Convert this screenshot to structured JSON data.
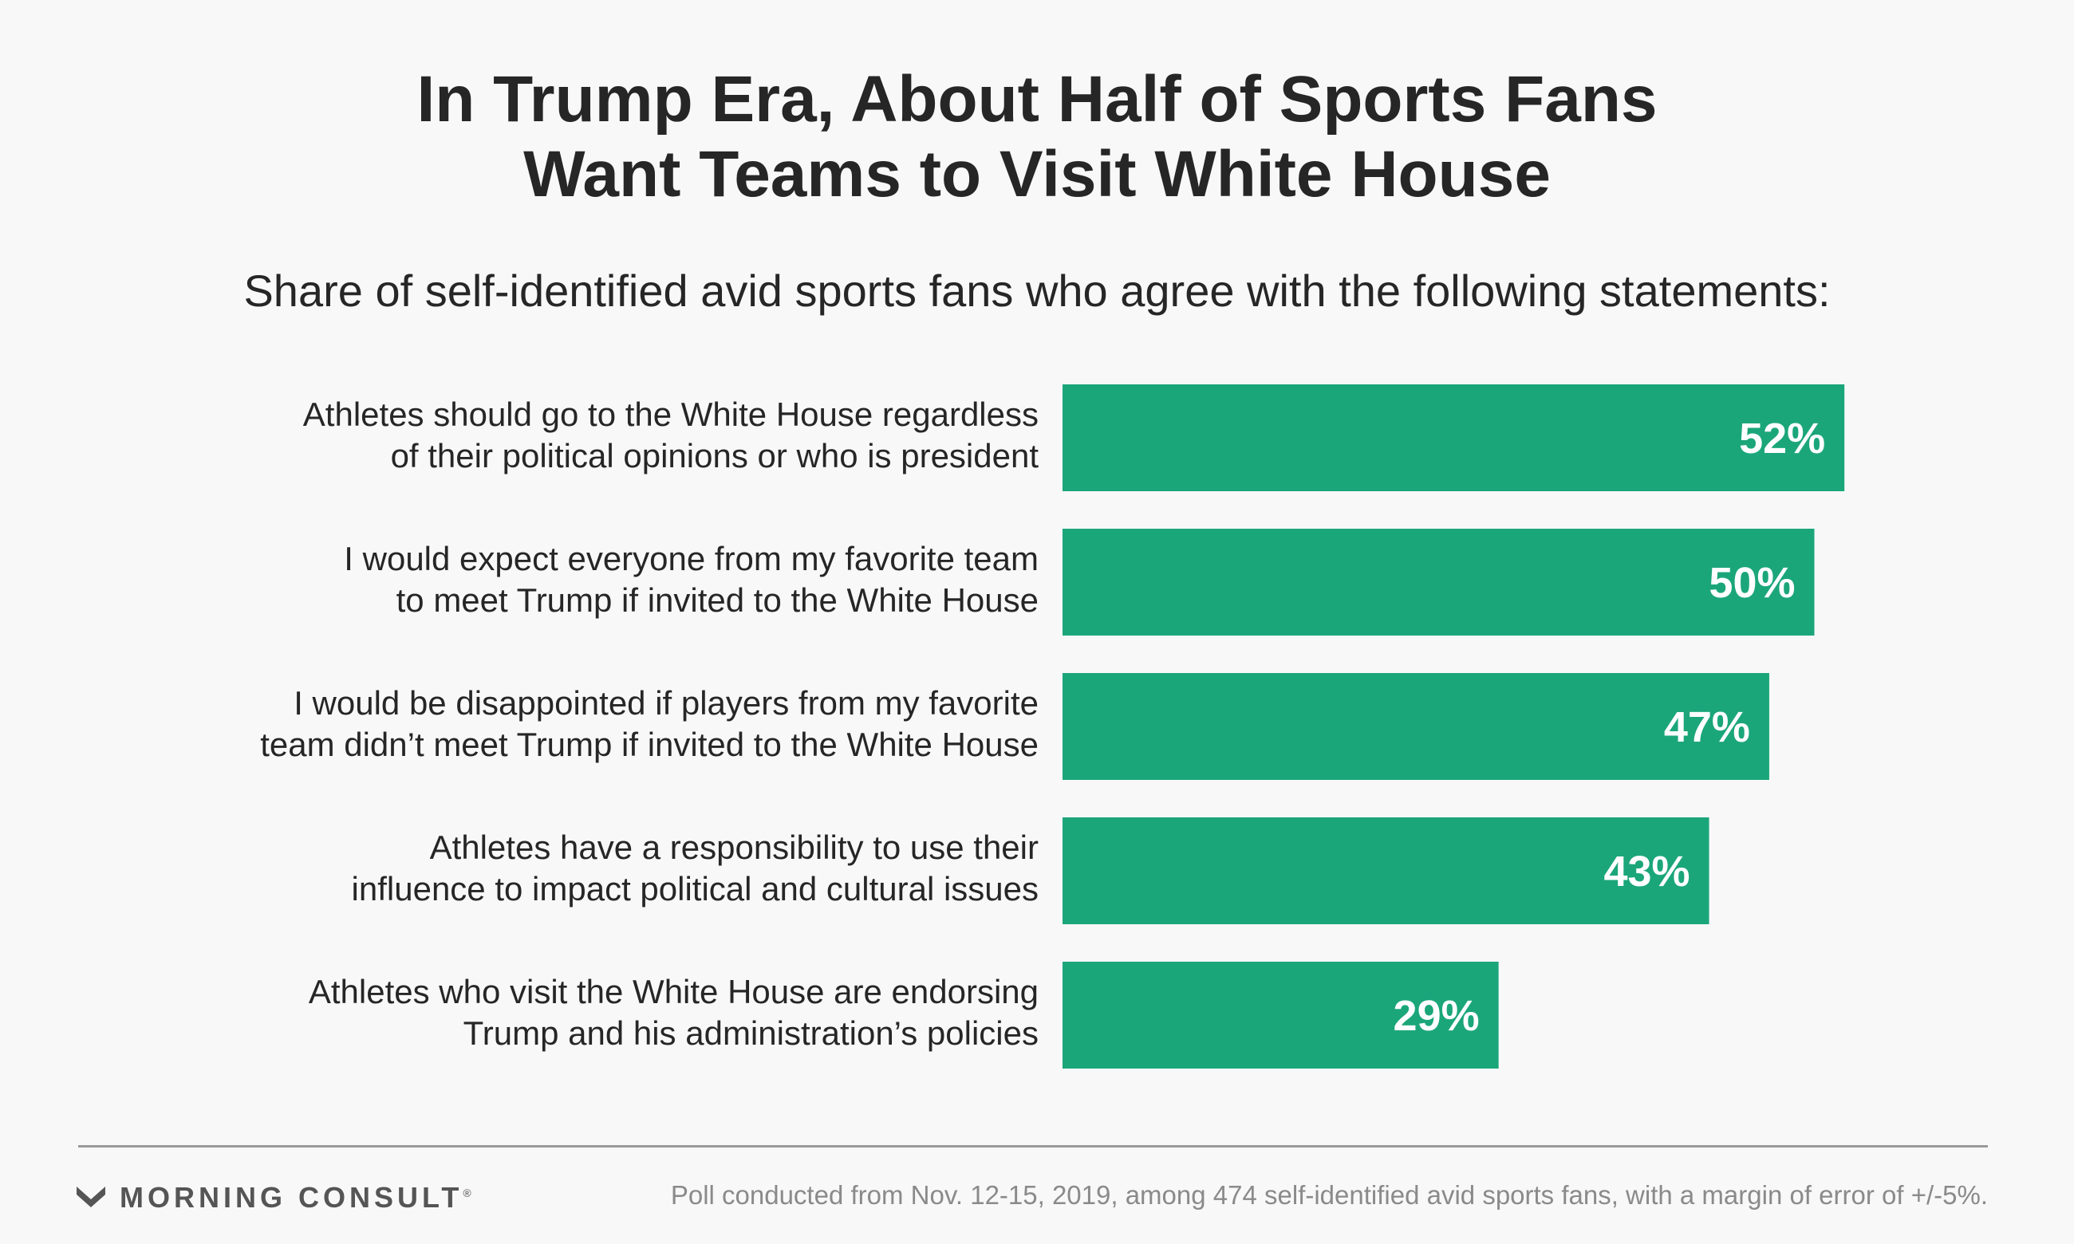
{
  "header": {
    "title_line1": "In Trump Era, About Half of Sports Fans",
    "title_line2": "Want Teams to Visit White House",
    "subtitle": "Share of self-identified avid sports fans who agree with the following statements:"
  },
  "chart_data": {
    "type": "bar",
    "orientation": "horizontal",
    "title": "In Trump Era, About Half of Sports Fans Want Teams to Visit White House",
    "subtitle": "Share of self-identified avid sports fans who agree with the following statements:",
    "categories": [
      [
        "Athletes should go to the White House regardless",
        "of their political opinions or who is president"
      ],
      [
        "I would expect everyone from my favorite team",
        "to meet Trump if invited to the White House"
      ],
      [
        "I would be disappointed if players from my favorite",
        "team didn’t meet Trump if invited to the White House"
      ],
      [
        "Athletes have a responsibility to use their",
        "influence to impact political and cultural issues"
      ],
      [
        "Athletes who visit the White House are endorsing",
        "Trump and his administration’s policies"
      ]
    ],
    "values": [
      52,
      50,
      47,
      43,
      29
    ],
    "value_labels": [
      "52%",
      "50%",
      "47%",
      "43%",
      "29%"
    ],
    "unit": "%",
    "xlim": [
      0,
      100
    ],
    "grid": false,
    "legend": "none",
    "bar_color": "#1ba67a",
    "label_color": "#ffffff"
  },
  "footer": {
    "brand": "MORNING CONSULT",
    "brand_mark": "®",
    "note": "Poll conducted from Nov. 12-15, 2019, among 474 self-identified avid sports fans, with a margin of error of +/-5%."
  },
  "colors": {
    "accent": "#1ba67a",
    "text": "#262626",
    "muted": "#8a8a8a",
    "background": "#f8f8f8"
  },
  "icons": {
    "logo": "morning-consult-logo-icon"
  }
}
